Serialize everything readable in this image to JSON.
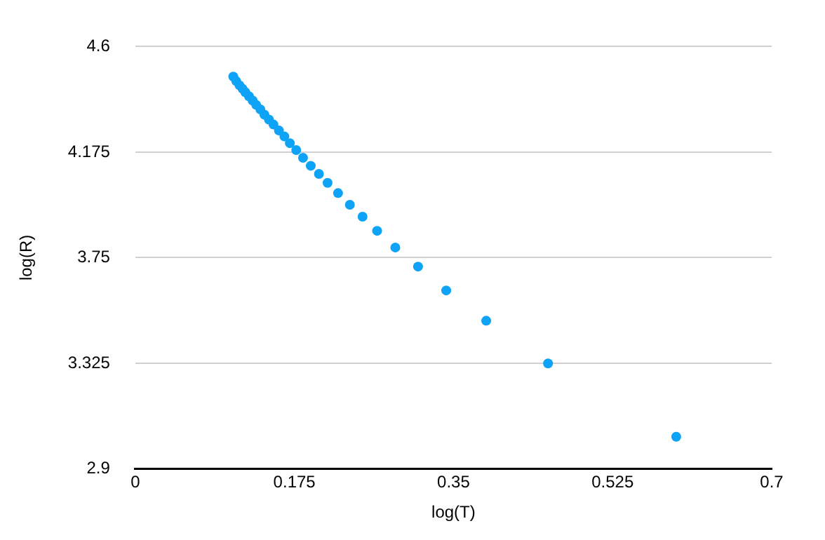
{
  "chart_data": {
    "type": "scatter",
    "xlabel": "log(T)",
    "ylabel": "log(R)",
    "x": [
      0.1078,
      0.111,
      0.1146,
      0.118,
      0.121,
      0.125,
      0.129,
      0.133,
      0.1376,
      0.142,
      0.147,
      0.152,
      0.158,
      0.164,
      0.17,
      0.177,
      0.1845,
      0.193,
      0.202,
      0.2115,
      0.223,
      0.236,
      0.25,
      0.266,
      0.286,
      0.311,
      0.342,
      0.386,
      0.454,
      0.595
    ],
    "series": [
      {
        "color": "#0fa3f7",
        "values": [
          4.479,
          4.461,
          4.444,
          4.43,
          4.416,
          4.4,
          4.383,
          4.365,
          4.347,
          4.326,
          4.306,
          4.286,
          4.262,
          4.238,
          4.211,
          4.183,
          4.152,
          4.12,
          4.087,
          4.051,
          4.01,
          3.963,
          3.915,
          3.858,
          3.791,
          3.714,
          3.618,
          3.496,
          3.324,
          3.029
        ]
      }
    ],
    "xlim": [
      0,
      0.7
    ],
    "xticks": [
      0,
      0.175,
      0.35,
      0.525,
      0.7
    ],
    "ylim": [
      2.9,
      4.6
    ],
    "yticks": [
      2.9,
      3.325,
      3.75,
      4.175,
      4.6
    ],
    "grid": "y",
    "marker": "circle",
    "legend": false
  }
}
